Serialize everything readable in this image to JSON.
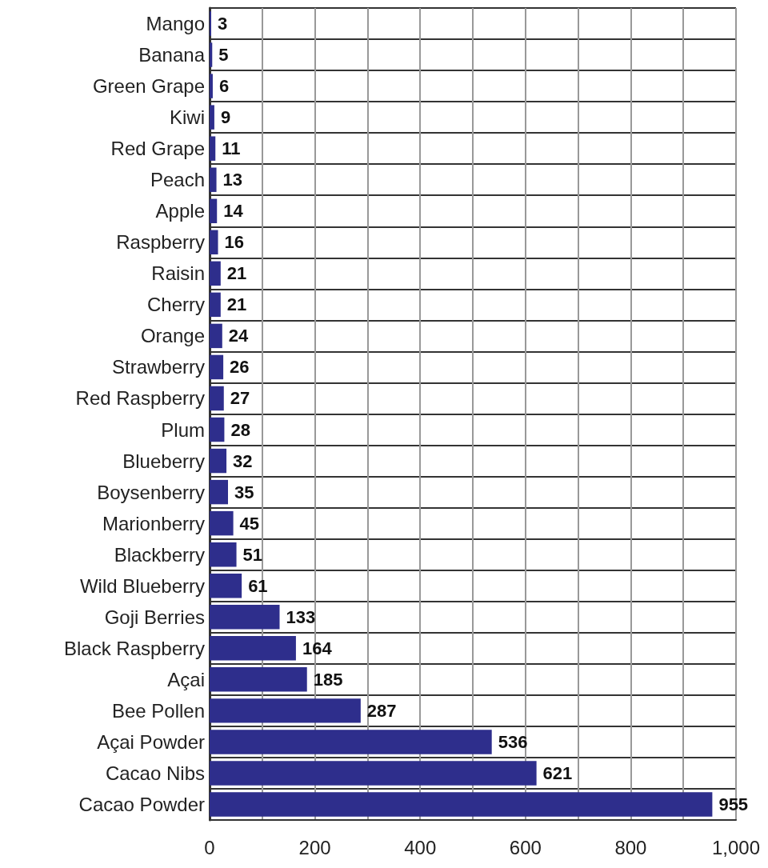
{
  "chart_data": {
    "type": "bar",
    "orientation": "horizontal",
    "categories": [
      "Mango",
      "Banana",
      "Green Grape",
      "Kiwi",
      "Red Grape",
      "Peach",
      "Apple",
      "Raspberry",
      "Raisin",
      "Cherry",
      "Orange",
      "Strawberry",
      "Red Raspberry",
      "Plum",
      "Blueberry",
      "Boysenberry",
      "Marionberry",
      "Blackberry",
      "Wild Blueberry",
      "Goji Berries",
      "Black Raspberry",
      "Açai",
      "Bee Pollen",
      "Açai Powder",
      "Cacao Nibs",
      "Cacao Powder"
    ],
    "values": [
      3,
      5,
      6,
      9,
      11,
      13,
      14,
      16,
      21,
      21,
      24,
      26,
      27,
      28,
      32,
      35,
      45,
      51,
      61,
      133,
      164,
      185,
      287,
      536,
      621,
      955
    ],
    "color": "#2e2e8c",
    "xlim": [
      0,
      1000
    ],
    "xticks": [
      0,
      {
        "value": 100,
        "label": null
      },
      200,
      {
        "value": 300,
        "label": null
      },
      400,
      {
        "value": 500,
        "label": null
      },
      600,
      {
        "value": 700,
        "label": null
      },
      800,
      {
        "value": 900,
        "label": null
      },
      {
        "value": 1000,
        "label": "1,000"
      }
    ],
    "grid": true,
    "data_labels": true
  }
}
